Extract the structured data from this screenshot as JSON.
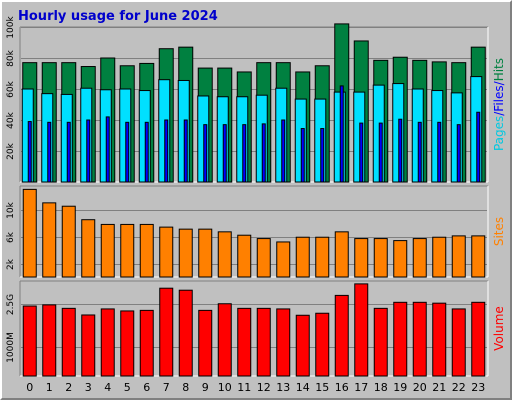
{
  "chart_data": [
    {
      "type": "bar",
      "title": "Hourly usage for June 2024",
      "categories": [
        "0",
        "1",
        "2",
        "3",
        "4",
        "5",
        "6",
        "7",
        "8",
        "9",
        "10",
        "11",
        "12",
        "13",
        "14",
        "15",
        "16",
        "17",
        "18",
        "19",
        "20",
        "21",
        "22",
        "23"
      ],
      "ylim": [
        0,
        100000
      ],
      "yticks": [
        "20k",
        "40k",
        "60k",
        "80k",
        "100k"
      ],
      "ylabels": [
        "Pages",
        "/",
        "Files",
        "/",
        "Hits"
      ],
      "series": [
        {
          "name": "Hits",
          "color": "#008040",
          "values": [
            77000,
            77000,
            77000,
            74500,
            80000,
            75000,
            76500,
            86000,
            87000,
            73500,
            73500,
            71000,
            77000,
            77000,
            71000,
            75000,
            102000,
            91000,
            78500,
            80500,
            78500,
            77500,
            77000,
            87000
          ]
        },
        {
          "name": "Files",
          "color": "#00e0ff",
          "values": [
            60000,
            57000,
            56500,
            60500,
            59500,
            60000,
            59000,
            66000,
            65500,
            55500,
            55000,
            55000,
            56000,
            60500,
            53500,
            53500,
            58000,
            58000,
            62500,
            63500,
            60000,
            59000,
            57500,
            68000
          ]
        },
        {
          "name": "Pages",
          "color": "#0000ff",
          "values": [
            39000,
            38500,
            38500,
            40000,
            42000,
            38500,
            38500,
            40000,
            40000,
            37000,
            37000,
            37000,
            37500,
            40000,
            34500,
            34500,
            62000,
            38000,
            38000,
            40500,
            38500,
            38500,
            37000,
            45000
          ]
        }
      ]
    },
    {
      "type": "bar",
      "categories": [
        "0",
        "1",
        "2",
        "3",
        "4",
        "5",
        "6",
        "7",
        "8",
        "9",
        "10",
        "11",
        "12",
        "13",
        "14",
        "15",
        "16",
        "17",
        "18",
        "19",
        "20",
        "21",
        "22",
        "23"
      ],
      "ylim": [
        0,
        13500
      ],
      "yticks": [
        "2k",
        "6k",
        "10k"
      ],
      "ylabels": [
        "Sites"
      ],
      "series": [
        {
          "name": "Sites",
          "color": "#ff8000",
          "values": [
            13000,
            11000,
            10500,
            8500,
            7800,
            7800,
            7800,
            7400,
            7100,
            7100,
            6700,
            6200,
            5700,
            5200,
            5900,
            5900,
            6700,
            5700,
            5700,
            5400,
            5700,
            5900,
            6100,
            6100
          ]
        }
      ]
    },
    {
      "type": "bar",
      "categories": [
        "0",
        "1",
        "2",
        "3",
        "4",
        "5",
        "6",
        "7",
        "8",
        "9",
        "10",
        "11",
        "12",
        "13",
        "14",
        "15",
        "16",
        "17",
        "18",
        "19",
        "20",
        "21",
        "22",
        "23"
      ],
      "ylim": [
        0,
        3300
      ],
      "yticks": [
        "1000M",
        "2.5G"
      ],
      "ylabels": [
        "Volume"
      ],
      "series": [
        {
          "name": "Volume",
          "color": "#ff0000",
          "values": [
            2430,
            2470,
            2350,
            2120,
            2330,
            2260,
            2280,
            3050,
            2980,
            2280,
            2510,
            2350,
            2350,
            2330,
            2110,
            2180,
            2800,
            3200,
            2350,
            2560,
            2560,
            2530,
            2330,
            2560
          ]
        }
      ]
    }
  ]
}
